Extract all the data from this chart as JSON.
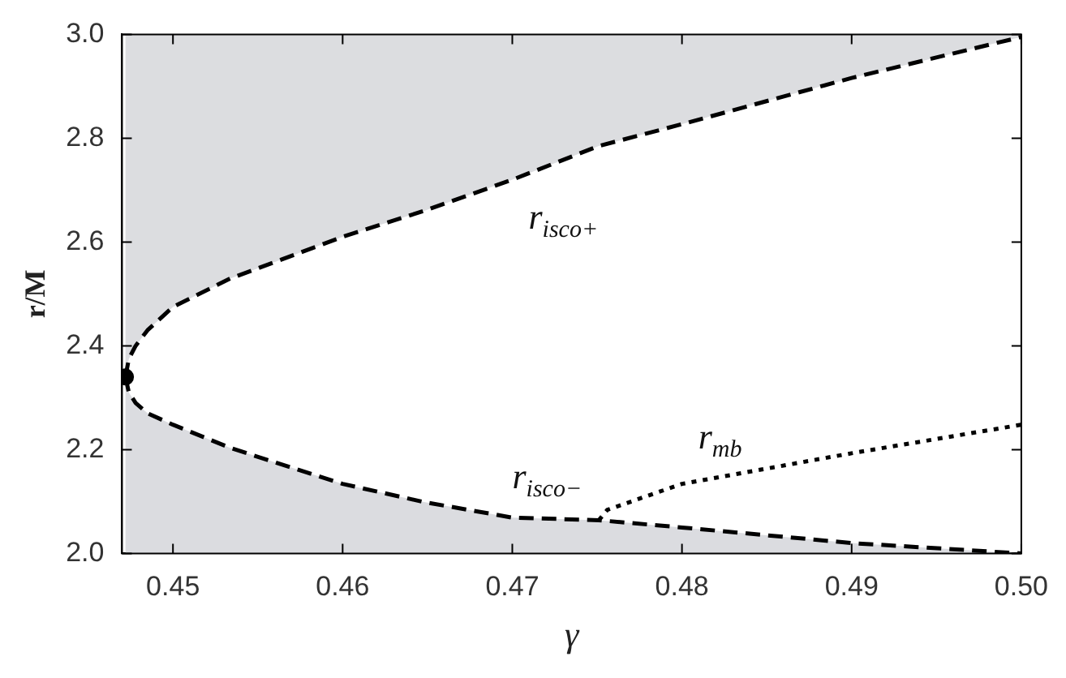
{
  "chart_data": {
    "type": "line",
    "xlabel": "γ",
    "ylabel": "r/M",
    "xlim": [
      0.447,
      0.5
    ],
    "ylim": [
      2.0,
      3.0
    ],
    "xticks": [
      0.45,
      0.46,
      0.47,
      0.48,
      0.49,
      {
        "value": 0.5,
        "label": "0.50"
      }
    ],
    "yticks": [
      {
        "value": 2,
        "label": "2.0"
      },
      2.2,
      2.4,
      2.6,
      2.8,
      {
        "value": 3,
        "label": "3.0"
      }
    ],
    "series": [
      {
        "name": "r$_{isco+}$",
        "color": "#000000",
        "line_style": "dashed",
        "x": [
          0.4472,
          0.4474,
          0.4478,
          0.4485,
          0.45,
          0.4534,
          0.46,
          0.4648,
          0.47,
          0.4751,
          0.48,
          0.49,
          0.5
        ],
        "values": [
          2.34,
          2.375,
          2.4,
          2.43,
          2.475,
          2.53,
          2.61,
          2.66,
          2.72,
          2.785,
          2.827,
          2.916,
          2.995
        ],
        "lower": [
          2.34,
          2.375,
          2.4,
          2.43,
          2.475,
          2.53,
          2.61,
          2.66,
          2.72,
          2.785,
          2.827,
          2.916,
          2.995
        ],
        "upper": [
          3,
          3,
          3,
          3,
          3,
          3,
          3,
          3,
          3,
          3,
          3,
          3,
          3
        ]
      },
      {
        "name": "r$_{isco−}$",
        "color": "#000000",
        "line_style": "dashed",
        "x": [
          0.4472,
          0.4474,
          0.4478,
          0.4485,
          0.45,
          0.4534,
          0.46,
          0.4648,
          0.47,
          0.4751,
          0.48,
          0.49,
          0.5
        ],
        "values": [
          2.34,
          2.31,
          2.29,
          2.27,
          2.248,
          2.203,
          2.134,
          2.099,
          2.069,
          2.064,
          2.05,
          2.02,
          2.0
        ],
        "lower": [
          2,
          2,
          2,
          2,
          2,
          2,
          2,
          2,
          2,
          2,
          2,
          2,
          2
        ],
        "upper": [
          2.34,
          2.31,
          2.29,
          2.27,
          2.248,
          2.203,
          2.134,
          2.099,
          2.069,
          2.064,
          2.05,
          2.02,
          2.0
        ]
      },
      {
        "name": "r$_{mb}$",
        "color": "#000000",
        "line_style": "dotted",
        "x": [
          0.4751,
          0.4756,
          0.48,
          0.49,
          0.5
        ],
        "values": [
          2.064,
          2.084,
          2.134,
          2.193,
          2.248
        ]
      },
      {
        "type": "scatter",
        "color": "#000000",
        "marker": "circle",
        "x": [
          0.4472
        ],
        "values": [
          2.34
        ]
      }
    ]
  }
}
